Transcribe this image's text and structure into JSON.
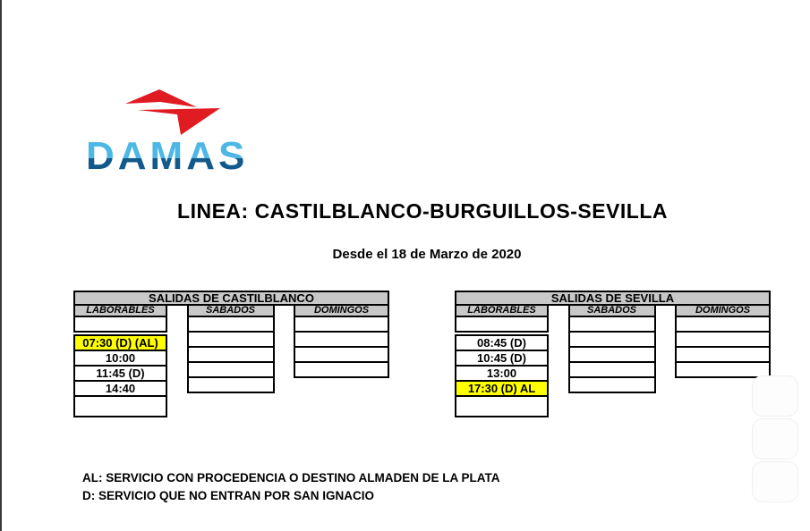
{
  "brand": {
    "name": "DAMAS",
    "arrow_color": "#e01b22",
    "text_top_color": "#4db7e6",
    "text_bottom_color": "#135a8c"
  },
  "heading": {
    "title": "LINEA: CASTILBLANCO-BURGUILLOS-SEVILLA",
    "subtitle": "Desde el 18 de Marzo de 2020"
  },
  "tables": [
    {
      "title": "SALIDAS DE CASTILBLANCO",
      "columns": [
        {
          "header": "LABORABLES",
          "rows": [
            {
              "text": ""
            },
            {
              "gap": true
            },
            {
              "text": "07:30 (D) (AL)",
              "highlight": true
            },
            {
              "text": "10:00"
            },
            {
              "text": "11:45 (D)"
            },
            {
              "text": "14:40"
            },
            {
              "text": "",
              "tall": true
            }
          ]
        },
        {
          "header": "SABADOS",
          "rows": [
            {
              "text": ""
            },
            {
              "text": ""
            },
            {
              "text": ""
            },
            {
              "text": ""
            },
            {
              "text": ""
            }
          ]
        },
        {
          "header": "DOMINGOS",
          "rows": [
            {
              "text": ""
            },
            {
              "text": ""
            },
            {
              "text": ""
            },
            {
              "text": ""
            }
          ]
        }
      ]
    },
    {
      "title": "SALIDAS DE SEVILLA",
      "columns": [
        {
          "header": "LABORABLES",
          "rows": [
            {
              "text": ""
            },
            {
              "gap": true
            },
            {
              "text": "08:45 (D)"
            },
            {
              "text": "10:45 (D)"
            },
            {
              "text": "13:00"
            },
            {
              "text": "17:30 (D) AL",
              "highlight": true
            },
            {
              "text": "",
              "tall": true
            }
          ]
        },
        {
          "header": "SABADOS",
          "rows": [
            {
              "text": ""
            },
            {
              "text": ""
            },
            {
              "text": ""
            },
            {
              "text": ""
            },
            {
              "text": ""
            }
          ]
        },
        {
          "header": "DOMINGOS",
          "rows": [
            {
              "text": ""
            },
            {
              "text": ""
            },
            {
              "text": ""
            },
            {
              "text": ""
            }
          ]
        }
      ]
    }
  ],
  "notes": {
    "lines": [
      "AL: SERVICIO CON PROCEDENCIA O DESTINO ALMADEN DE LA PLATA",
      "D: SERVICIO QUE NO ENTRAN POR SAN IGNACIO"
    ]
  },
  "colors": {
    "header_bg": "#c8c8c8",
    "highlight": "#ffff00",
    "border": "#000000",
    "page_edge": "#3a3a3a"
  }
}
